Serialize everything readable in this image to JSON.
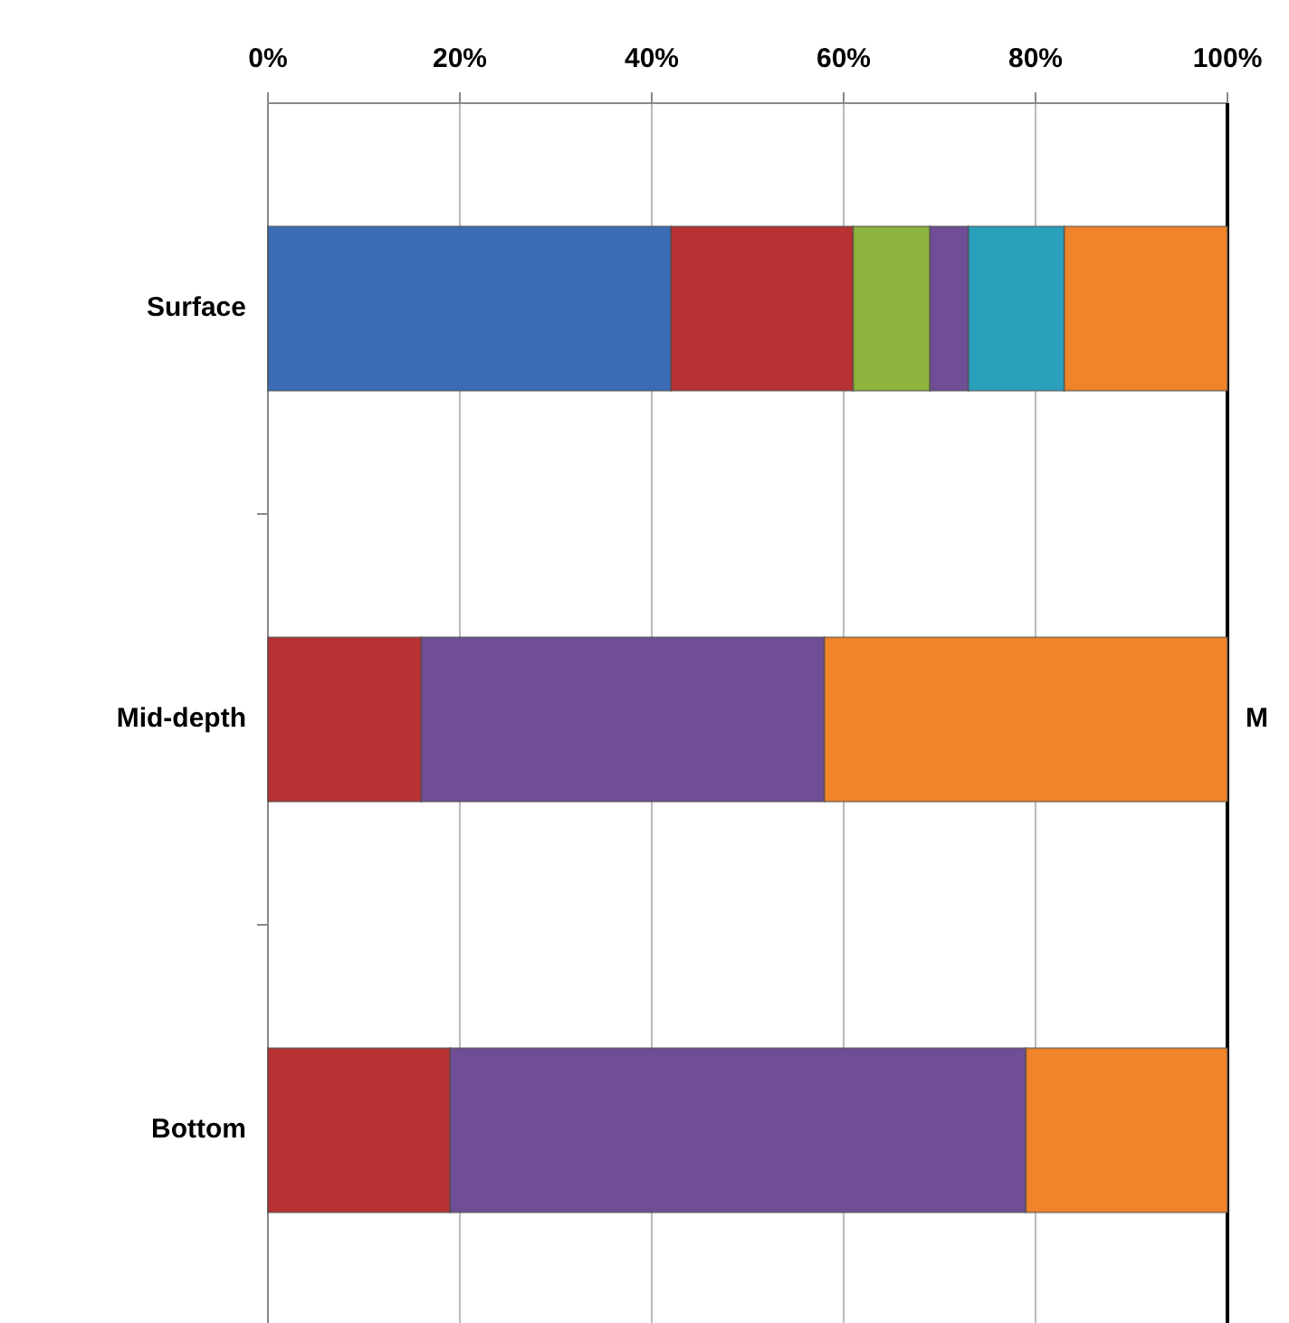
{
  "chart_data": {
    "type": "bar",
    "orientation": "horizontal",
    "stacked": true,
    "categories": [
      "Surface",
      "Mid-depth",
      "Bottom"
    ],
    "series": [
      {
        "color": "#3a6db5",
        "values": [
          42,
          0,
          0
        ]
      },
      {
        "color": "#b83234",
        "values": [
          19,
          16,
          19
        ]
      },
      {
        "color": "#8db43c",
        "values": [
          8,
          0,
          0
        ]
      },
      {
        "color": "#6f4e96",
        "values": [
          4,
          42,
          60
        ]
      },
      {
        "color": "#2aa0bd",
        "values": [
          10,
          0,
          0
        ]
      },
      {
        "color": "#f0842a",
        "values": [
          17,
          42,
          21
        ]
      }
    ],
    "xlim": [
      0,
      100
    ],
    "xticks": [
      {
        "value": 0,
        "label": "0%"
      },
      {
        "value": 20,
        "label": "20%"
      },
      {
        "value": 40,
        "label": "40%"
      },
      {
        "value": 60,
        "label": "60%"
      },
      {
        "value": 80,
        "label": "80%"
      },
      {
        "value": 100,
        "label": "100%"
      }
    ],
    "grid": "x",
    "annotations": [
      "M"
    ]
  }
}
